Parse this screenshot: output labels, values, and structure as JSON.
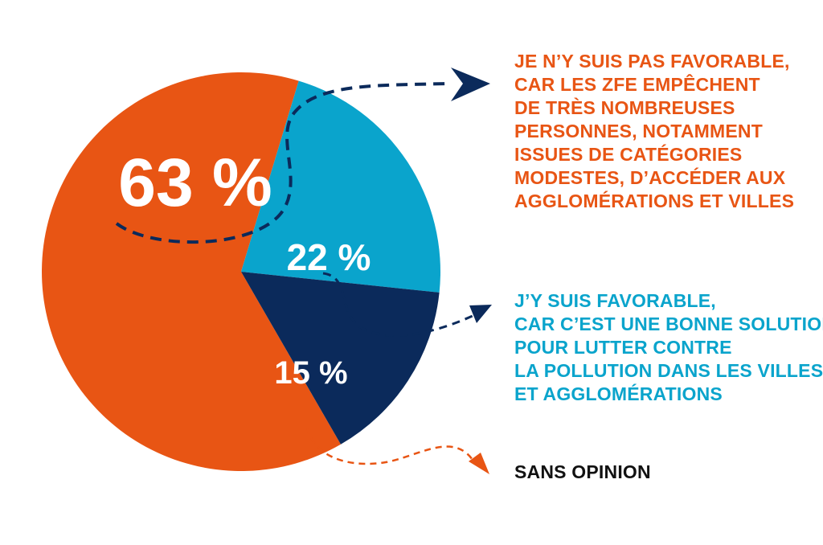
{
  "chart_data": {
    "type": "pie",
    "title": "",
    "slices": [
      {
        "name": "Je n'y suis pas favorable",
        "value": 63,
        "label": "63 %",
        "color": "#e85514"
      },
      {
        "name": "J'y suis favorable",
        "value": 22,
        "label": "22 %",
        "color": "#0aa4cc"
      },
      {
        "name": "Sans opinion",
        "value": 15,
        "label": "15 %",
        "color": "#0b2a5b"
      }
    ],
    "legend": [
      {
        "lines": [
          "JE N’Y SUIS PAS FAVORABLE,",
          "CAR LES ZFE EMPÊCHENT",
          "DE TRÈS NOMBREUSES",
          "PERSONNES, NOTAMMENT",
          "ISSUES DE CATÉGORIES",
          "MODESTES, D’ACCÉDER AUX",
          "AGGLOMÉRATIONS ET VILLES"
        ],
        "color": "#e85514"
      },
      {
        "lines": [
          "J’Y SUIS FAVORABLE,",
          "CAR C’EST UNE BONNE SOLUTION",
          "POUR LUTTER CONTRE",
          "LA POLLUTION DANS LES VILLES",
          "ET AGGLOMÉRATIONS"
        ],
        "color": "#0aa4cc"
      },
      {
        "lines": [
          "SANS OPINION"
        ],
        "color": "#111111"
      }
    ],
    "arrow_colors": [
      "#0b2a5b",
      "#0b2a5b",
      "#e85514"
    ]
  }
}
